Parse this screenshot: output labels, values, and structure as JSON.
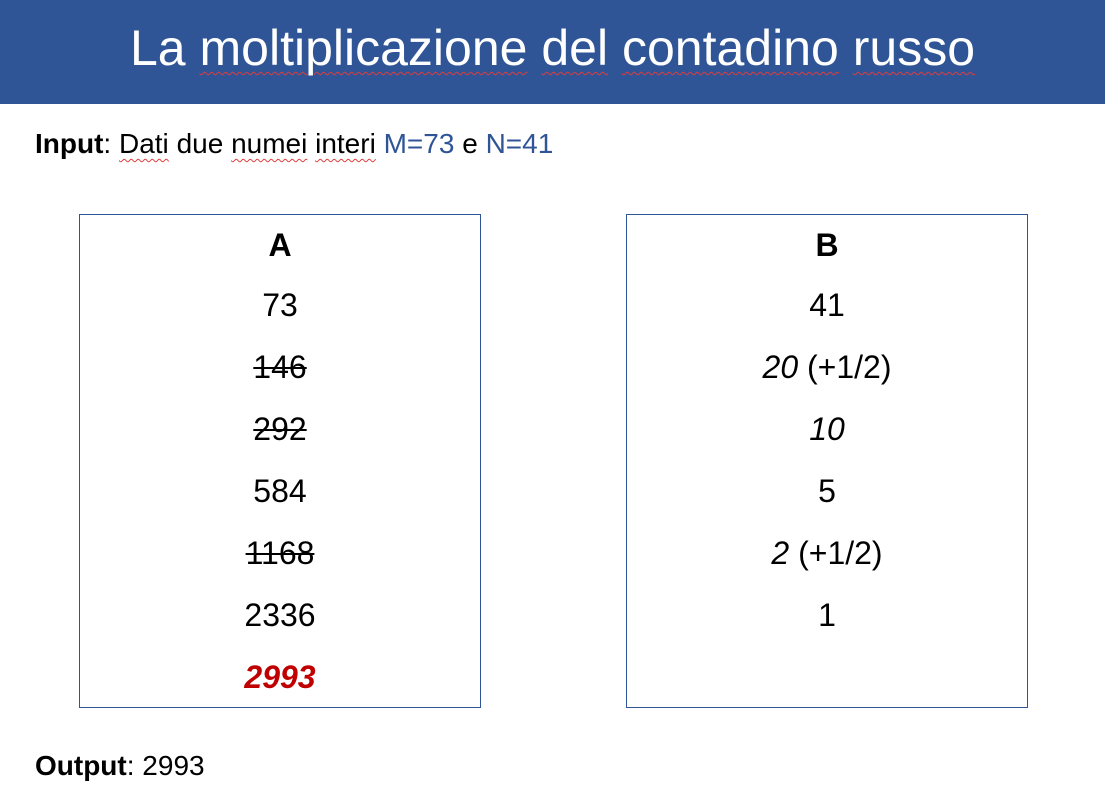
{
  "slide": {
    "title": {
      "w1": "La",
      "w2": "moltiplicazione",
      "w3": "del",
      "w4": "contadino",
      "w5": "russo"
    },
    "input": {
      "label": "Input",
      "colon": ":",
      "w1": "Dati",
      "w2": "due",
      "w3": "numei",
      "w4": "interi",
      "m": "M=73",
      "and": "e",
      "n": "N=41"
    },
    "output": {
      "label": "Output",
      "value": ": 2993"
    }
  },
  "column_a": {
    "header": "A",
    "rows": [
      "73",
      "146",
      "292",
      "584",
      "1168",
      "2336"
    ],
    "struck_rows": [
      1,
      2,
      4
    ],
    "result": "2993"
  },
  "column_b": {
    "header": "B",
    "rows": [
      {
        "value": "41",
        "note": ""
      },
      {
        "value": "20",
        "note": " (+1/2)"
      },
      {
        "value": "10",
        "note": ""
      },
      {
        "value": "5",
        "note": ""
      },
      {
        "value": "2",
        "note": " (+1/2)"
      },
      {
        "value": "1",
        "note": ""
      }
    ]
  },
  "colors": {
    "title_bar": "#2F5597",
    "accent_text": "#2F5597",
    "result_text": "#C00000",
    "box_border": "#2F5597"
  }
}
